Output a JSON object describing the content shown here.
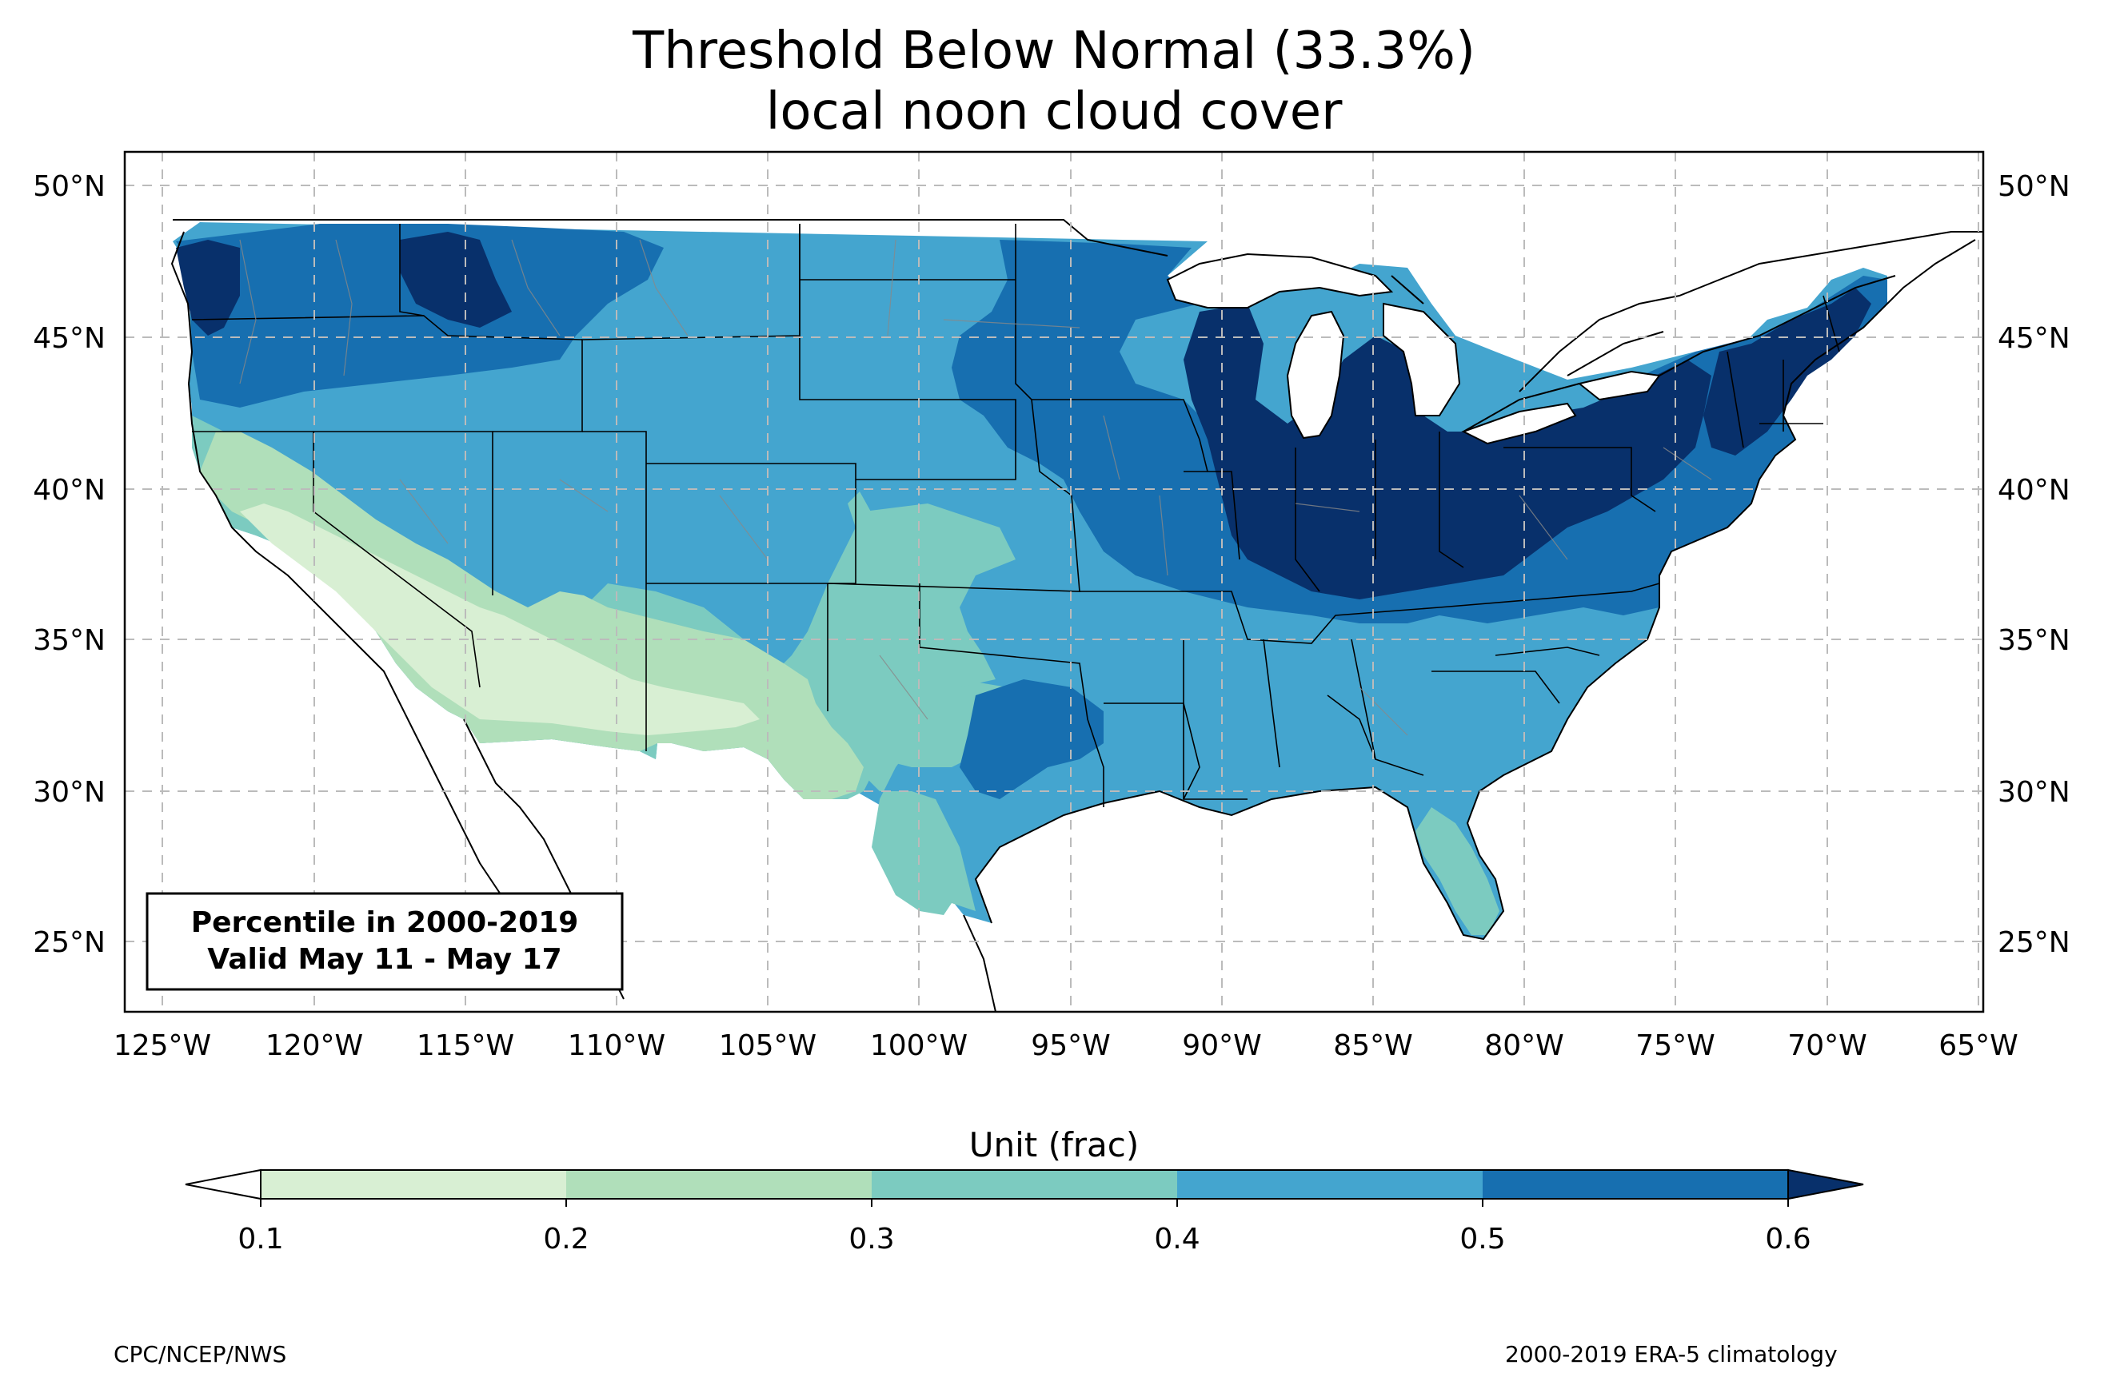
{
  "title": {
    "line1": "Threshold Below Normal (33.3%)",
    "line2": "local noon cloud cover"
  },
  "infobox": {
    "line1": "Percentile in 2000-2019",
    "line2": "Valid May 11 - May 17"
  },
  "axes": {
    "lon_ticks": [
      "125°W",
      "120°W",
      "115°W",
      "110°W",
      "105°W",
      "100°W",
      "95°W",
      "90°W",
      "85°W",
      "80°W",
      "75°W",
      "70°W",
      "65°W"
    ],
    "lat_ticks": [
      "50°N",
      "45°N",
      "40°N",
      "35°N",
      "30°N",
      "25°N"
    ]
  },
  "colorbar": {
    "title": "Unit (frac)",
    "labels": [
      "0.1",
      "0.2",
      "0.3",
      "0.4",
      "0.5",
      "0.6"
    ],
    "colors": [
      "#d8efd3",
      "#b0dfba",
      "#7ccbc0",
      "#44a5cf",
      "#176fb0",
      "#08306b"
    ]
  },
  "footer": {
    "left": "CPC/NCEP/NWS",
    "right": "2000-2019 ERA-5 climatology"
  }
}
